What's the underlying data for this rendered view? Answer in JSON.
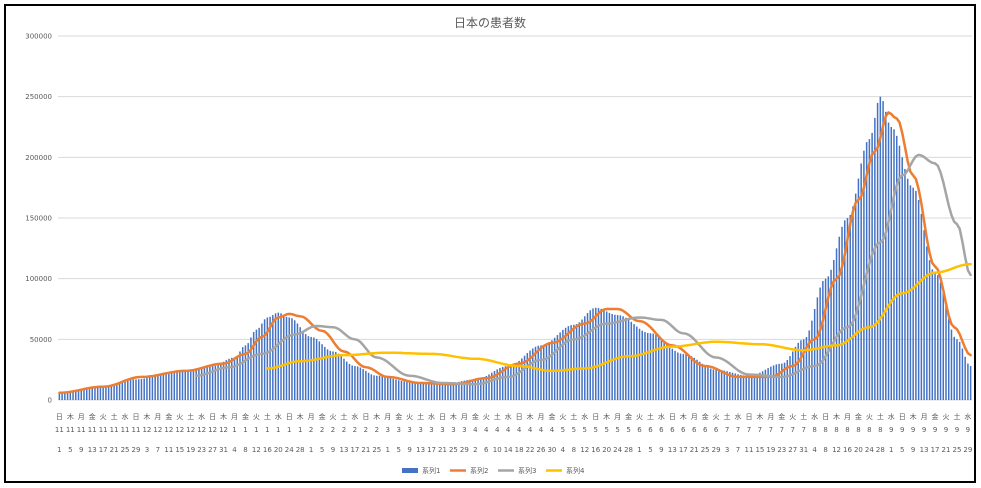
{
  "chart_data": {
    "type": "bar",
    "title": "日本の患者数",
    "ylim": [
      0,
      300000
    ],
    "yticks": [
      0,
      50000,
      100000,
      150000,
      200000,
      250000,
      300000
    ],
    "grid": true,
    "legend_position": "bottom",
    "x_start": "2020-11-01",
    "x_end": "2021-09-30",
    "x_tick_labels": [
      {
        "date": "2020-11-01",
        "dow": "日",
        "month": "11",
        "day": "1"
      },
      {
        "date": "2020-11-05",
        "dow": "木",
        "month": "11",
        "day": "5"
      },
      {
        "date": "2020-11-09",
        "dow": "月",
        "month": "11",
        "day": "9"
      },
      {
        "date": "2020-11-13",
        "dow": "金",
        "month": "11",
        "day": "13"
      },
      {
        "date": "2020-11-17",
        "dow": "火",
        "month": "11",
        "day": "17"
      },
      {
        "date": "2020-11-21",
        "dow": "土",
        "month": "11",
        "day": "21"
      },
      {
        "date": "2020-11-25",
        "dow": "水",
        "month": "11",
        "day": "25"
      },
      {
        "date": "2020-11-29",
        "dow": "日",
        "month": "11",
        "day": "29"
      },
      {
        "date": "2020-12-03",
        "dow": "木",
        "month": "12",
        "day": "3"
      },
      {
        "date": "2020-12-07",
        "dow": "月",
        "month": "12",
        "day": "7"
      },
      {
        "date": "2020-12-11",
        "dow": "金",
        "month": "12",
        "day": "11"
      },
      {
        "date": "2020-12-15",
        "dow": "火",
        "month": "12",
        "day": "15"
      },
      {
        "date": "2020-12-19",
        "dow": "土",
        "month": "12",
        "day": "19"
      },
      {
        "date": "2020-12-23",
        "dow": "水",
        "month": "12",
        "day": "23"
      },
      {
        "date": "2020-12-27",
        "dow": "日",
        "month": "12",
        "day": "27"
      },
      {
        "date": "2020-12-31",
        "dow": "木",
        "month": "12",
        "day": "31"
      },
      {
        "date": "2021-01-04",
        "dow": "月",
        "month": "1",
        "day": "4"
      },
      {
        "date": "2021-01-08",
        "dow": "金",
        "month": "1",
        "day": "8"
      },
      {
        "date": "2021-01-12",
        "dow": "火",
        "month": "1",
        "day": "12"
      },
      {
        "date": "2021-01-16",
        "dow": "土",
        "month": "1",
        "day": "16"
      },
      {
        "date": "2021-01-20",
        "dow": "水",
        "month": "1",
        "day": "20"
      },
      {
        "date": "2021-01-24",
        "dow": "日",
        "month": "1",
        "day": "24"
      },
      {
        "date": "2021-01-28",
        "dow": "木",
        "month": "1",
        "day": "28"
      },
      {
        "date": "2021-02-01",
        "dow": "月",
        "month": "2",
        "day": "1"
      },
      {
        "date": "2021-02-05",
        "dow": "金",
        "month": "2",
        "day": "5"
      },
      {
        "date": "2021-02-09",
        "dow": "火",
        "month": "2",
        "day": "9"
      },
      {
        "date": "2021-02-13",
        "dow": "土",
        "month": "2",
        "day": "13"
      },
      {
        "date": "2021-02-17",
        "dow": "水",
        "month": "2",
        "day": "17"
      },
      {
        "date": "2021-02-21",
        "dow": "日",
        "month": "2",
        "day": "21"
      },
      {
        "date": "2021-02-25",
        "dow": "木",
        "month": "2",
        "day": "25"
      },
      {
        "date": "2021-03-01",
        "dow": "月",
        "month": "3",
        "day": "1"
      },
      {
        "date": "2021-03-05",
        "dow": "金",
        "month": "3",
        "day": "5"
      },
      {
        "date": "2021-03-09",
        "dow": "火",
        "month": "3",
        "day": "9"
      },
      {
        "date": "2021-03-13",
        "dow": "土",
        "month": "3",
        "day": "13"
      },
      {
        "date": "2021-03-17",
        "dow": "水",
        "month": "3",
        "day": "17"
      },
      {
        "date": "2021-03-21",
        "dow": "日",
        "month": "3",
        "day": "21"
      },
      {
        "date": "2021-03-25",
        "dow": "木",
        "month": "3",
        "day": "25"
      },
      {
        "date": "2021-03-29",
        "dow": "月",
        "month": "3",
        "day": "29"
      },
      {
        "date": "2021-04-02",
        "dow": "金",
        "month": "4",
        "day": "2"
      },
      {
        "date": "2021-04-06",
        "dow": "火",
        "month": "4",
        "day": "6"
      },
      {
        "date": "2021-04-10",
        "dow": "土",
        "month": "4",
        "day": "10"
      },
      {
        "date": "2021-04-14",
        "dow": "水",
        "month": "4",
        "day": "14"
      },
      {
        "date": "2021-04-18",
        "dow": "日",
        "month": "4",
        "day": "18"
      },
      {
        "date": "2021-04-22",
        "dow": "木",
        "month": "4",
        "day": "22"
      },
      {
        "date": "2021-04-26",
        "dow": "月",
        "month": "4",
        "day": "26"
      },
      {
        "date": "2021-04-30",
        "dow": "金",
        "month": "4",
        "day": "30"
      },
      {
        "date": "2021-05-04",
        "dow": "火",
        "month": "5",
        "day": "4"
      },
      {
        "date": "2021-05-08",
        "dow": "土",
        "month": "5",
        "day": "8"
      },
      {
        "date": "2021-05-12",
        "dow": "水",
        "month": "5",
        "day": "12"
      },
      {
        "date": "2021-05-16",
        "dow": "日",
        "month": "5",
        "day": "16"
      },
      {
        "date": "2021-05-20",
        "dow": "木",
        "month": "5",
        "day": "20"
      },
      {
        "date": "2021-05-24",
        "dow": "月",
        "month": "5",
        "day": "24"
      },
      {
        "date": "2021-05-28",
        "dow": "金",
        "month": "5",
        "day": "28"
      },
      {
        "date": "2021-06-01",
        "dow": "火",
        "month": "6",
        "day": "1"
      },
      {
        "date": "2021-06-05",
        "dow": "土",
        "month": "6",
        "day": "5"
      },
      {
        "date": "2021-06-09",
        "dow": "水",
        "month": "6",
        "day": "9"
      },
      {
        "date": "2021-06-13",
        "dow": "日",
        "month": "6",
        "day": "13"
      },
      {
        "date": "2021-06-17",
        "dow": "木",
        "month": "6",
        "day": "17"
      },
      {
        "date": "2021-06-21",
        "dow": "月",
        "month": "6",
        "day": "21"
      },
      {
        "date": "2021-06-25",
        "dow": "金",
        "month": "6",
        "day": "25"
      },
      {
        "date": "2021-06-29",
        "dow": "火",
        "month": "6",
        "day": "29"
      },
      {
        "date": "2021-07-03",
        "dow": "土",
        "month": "7",
        "day": "3"
      },
      {
        "date": "2021-07-07",
        "dow": "水",
        "month": "7",
        "day": "7"
      },
      {
        "date": "2021-07-11",
        "dow": "日",
        "month": "7",
        "day": "11"
      },
      {
        "date": "2021-07-15",
        "dow": "木",
        "month": "7",
        "day": "15"
      },
      {
        "date": "2021-07-19",
        "dow": "月",
        "month": "7",
        "day": "19"
      },
      {
        "date": "2021-07-23",
        "dow": "金",
        "month": "7",
        "day": "23"
      },
      {
        "date": "2021-07-27",
        "dow": "火",
        "month": "7",
        "day": "27"
      },
      {
        "date": "2021-07-31",
        "dow": "土",
        "month": "7",
        "day": "31"
      },
      {
        "date": "2021-08-04",
        "dow": "水",
        "month": "8",
        "day": "4"
      },
      {
        "date": "2021-08-08",
        "dow": "日",
        "month": "8",
        "day": "8"
      },
      {
        "date": "2021-08-12",
        "dow": "木",
        "month": "8",
        "day": "12"
      },
      {
        "date": "2021-08-16",
        "dow": "月",
        "month": "8",
        "day": "16"
      },
      {
        "date": "2021-08-20",
        "dow": "金",
        "month": "8",
        "day": "20"
      },
      {
        "date": "2021-08-24",
        "dow": "火",
        "month": "8",
        "day": "24"
      },
      {
        "date": "2021-08-28",
        "dow": "土",
        "month": "8",
        "day": "28"
      },
      {
        "date": "2021-09-01",
        "dow": "水",
        "month": "9",
        "day": "1"
      },
      {
        "date": "2021-09-05",
        "dow": "日",
        "month": "9",
        "day": "5"
      },
      {
        "date": "2021-09-09",
        "dow": "木",
        "month": "9",
        "day": "9"
      },
      {
        "date": "2021-09-13",
        "dow": "月",
        "month": "9",
        "day": "13"
      },
      {
        "date": "2021-09-17",
        "dow": "金",
        "month": "9",
        "day": "17"
      },
      {
        "date": "2021-09-21",
        "dow": "火",
        "month": "9",
        "day": "21"
      },
      {
        "date": "2021-09-25",
        "dow": "土",
        "month": "9",
        "day": "25"
      },
      {
        "date": "2021-09-29",
        "dow": "水",
        "month": "9",
        "day": "29"
      }
    ],
    "series": [
      {
        "name": "系列1",
        "type": "bar",
        "color": "#4472c4",
        "points": [
          [
            "2020-11-01",
            6000
          ],
          [
            "2020-11-15",
            10000
          ],
          [
            "2020-11-29",
            17000
          ],
          [
            "2020-12-13",
            23000
          ],
          [
            "2020-12-27",
            28000
          ],
          [
            "2021-01-04",
            35000
          ],
          [
            "2021-01-08",
            45000
          ],
          [
            "2021-01-12",
            58000
          ],
          [
            "2021-01-16",
            68000
          ],
          [
            "2021-01-20",
            72000
          ],
          [
            "2021-01-24",
            68000
          ],
          [
            "2021-02-01",
            52000
          ],
          [
            "2021-02-09",
            40000
          ],
          [
            "2021-02-17",
            28000
          ],
          [
            "2021-02-25",
            20000
          ],
          [
            "2021-03-09",
            15000
          ],
          [
            "2021-03-21",
            13000
          ],
          [
            "2021-04-02",
            17000
          ],
          [
            "2021-04-14",
            28000
          ],
          [
            "2021-04-26",
            45000
          ],
          [
            "2021-05-08",
            62000
          ],
          [
            "2021-05-16",
            76000
          ],
          [
            "2021-05-24",
            70000
          ],
          [
            "2021-06-05",
            55000
          ],
          [
            "2021-06-17",
            38000
          ],
          [
            "2021-06-29",
            25000
          ],
          [
            "2021-07-11",
            20000
          ],
          [
            "2021-07-23",
            30000
          ],
          [
            "2021-07-31",
            50000
          ],
          [
            "2021-08-08",
            100000
          ],
          [
            "2021-08-16",
            150000
          ],
          [
            "2021-08-24",
            215000
          ],
          [
            "2021-08-28",
            250000
          ],
          [
            "2021-09-01",
            225000
          ],
          [
            "2021-09-09",
            175000
          ],
          [
            "2021-09-17",
            105000
          ],
          [
            "2021-09-25",
            50000
          ],
          [
            "2021-09-30",
            28000
          ]
        ]
      },
      {
        "name": "系列2",
        "type": "line",
        "color": "#ed7d31",
        "points": [
          [
            "2020-11-01",
            6000
          ],
          [
            "2020-11-17",
            11000
          ],
          [
            "2020-12-01",
            19000
          ],
          [
            "2020-12-17",
            24000
          ],
          [
            "2020-12-31",
            30000
          ],
          [
            "2021-01-08",
            38000
          ],
          [
            "2021-01-14",
            52000
          ],
          [
            "2021-01-20",
            68000
          ],
          [
            "2021-01-24",
            71000
          ],
          [
            "2021-01-28",
            69000
          ],
          [
            "2021-02-05",
            57000
          ],
          [
            "2021-02-13",
            40000
          ],
          [
            "2021-02-21",
            27000
          ],
          [
            "2021-03-01",
            19000
          ],
          [
            "2021-03-13",
            14000
          ],
          [
            "2021-03-25",
            13000
          ],
          [
            "2021-04-06",
            18000
          ],
          [
            "2021-04-18",
            30000
          ],
          [
            "2021-04-30",
            47000
          ],
          [
            "2021-05-12",
            63000
          ],
          [
            "2021-05-20",
            75000
          ],
          [
            "2021-05-24",
            75000
          ],
          [
            "2021-06-01",
            65000
          ],
          [
            "2021-06-13",
            45000
          ],
          [
            "2021-06-25",
            28000
          ],
          [
            "2021-07-07",
            19000
          ],
          [
            "2021-07-19",
            19000
          ],
          [
            "2021-07-27",
            28000
          ],
          [
            "2021-08-04",
            50000
          ],
          [
            "2021-08-12",
            100000
          ],
          [
            "2021-08-20",
            165000
          ],
          [
            "2021-08-26",
            205000
          ],
          [
            "2021-08-31",
            237000
          ],
          [
            "2021-09-03",
            232000
          ],
          [
            "2021-09-09",
            185000
          ],
          [
            "2021-09-17",
            110000
          ],
          [
            "2021-09-24",
            60000
          ],
          [
            "2021-09-30",
            37000
          ]
        ]
      },
      {
        "name": "系列3",
        "type": "line",
        "color": "#a5a5a5",
        "points": [
          [
            "2020-12-21",
            20000
          ],
          [
            "2021-01-02",
            27000
          ],
          [
            "2021-01-14",
            38000
          ],
          [
            "2021-01-26",
            54000
          ],
          [
            "2021-02-03",
            61000
          ],
          [
            "2021-02-09",
            60000
          ],
          [
            "2021-02-17",
            50000
          ],
          [
            "2021-02-25",
            35000
          ],
          [
            "2021-03-09",
            20000
          ],
          [
            "2021-03-21",
            14000
          ],
          [
            "2021-04-02",
            13000
          ],
          [
            "2021-04-14",
            19000
          ],
          [
            "2021-04-26",
            33000
          ],
          [
            "2021-05-08",
            50000
          ],
          [
            "2021-05-20",
            63000
          ],
          [
            "2021-06-01",
            68000
          ],
          [
            "2021-06-09",
            66000
          ],
          [
            "2021-06-17",
            55000
          ],
          [
            "2021-06-29",
            35000
          ],
          [
            "2021-07-11",
            21000
          ],
          [
            "2021-07-23",
            19000
          ],
          [
            "2021-08-04",
            28000
          ],
          [
            "2021-08-16",
            60000
          ],
          [
            "2021-08-28",
            130000
          ],
          [
            "2021-09-05",
            185000
          ],
          [
            "2021-09-11",
            202000
          ],
          [
            "2021-09-17",
            195000
          ],
          [
            "2021-09-25",
            145000
          ],
          [
            "2021-09-30",
            103000
          ]
        ]
      },
      {
        "name": "系列4",
        "type": "line",
        "color": "#ffc000",
        "points": [
          [
            "2021-01-16",
            26000
          ],
          [
            "2021-01-28",
            32000
          ],
          [
            "2021-02-13",
            37000
          ],
          [
            "2021-03-01",
            39000
          ],
          [
            "2021-03-17",
            38000
          ],
          [
            "2021-04-02",
            34000
          ],
          [
            "2021-04-18",
            28000
          ],
          [
            "2021-04-30",
            24000
          ],
          [
            "2021-05-12",
            26000
          ],
          [
            "2021-05-28",
            36000
          ],
          [
            "2021-06-13",
            44000
          ],
          [
            "2021-06-29",
            48000
          ],
          [
            "2021-07-15",
            46000
          ],
          [
            "2021-07-31",
            41000
          ],
          [
            "2021-08-12",
            45000
          ],
          [
            "2021-08-24",
            60000
          ],
          [
            "2021-09-05",
            88000
          ],
          [
            "2021-09-17",
            105000
          ],
          [
            "2021-09-30",
            112000
          ]
        ]
      }
    ]
  }
}
